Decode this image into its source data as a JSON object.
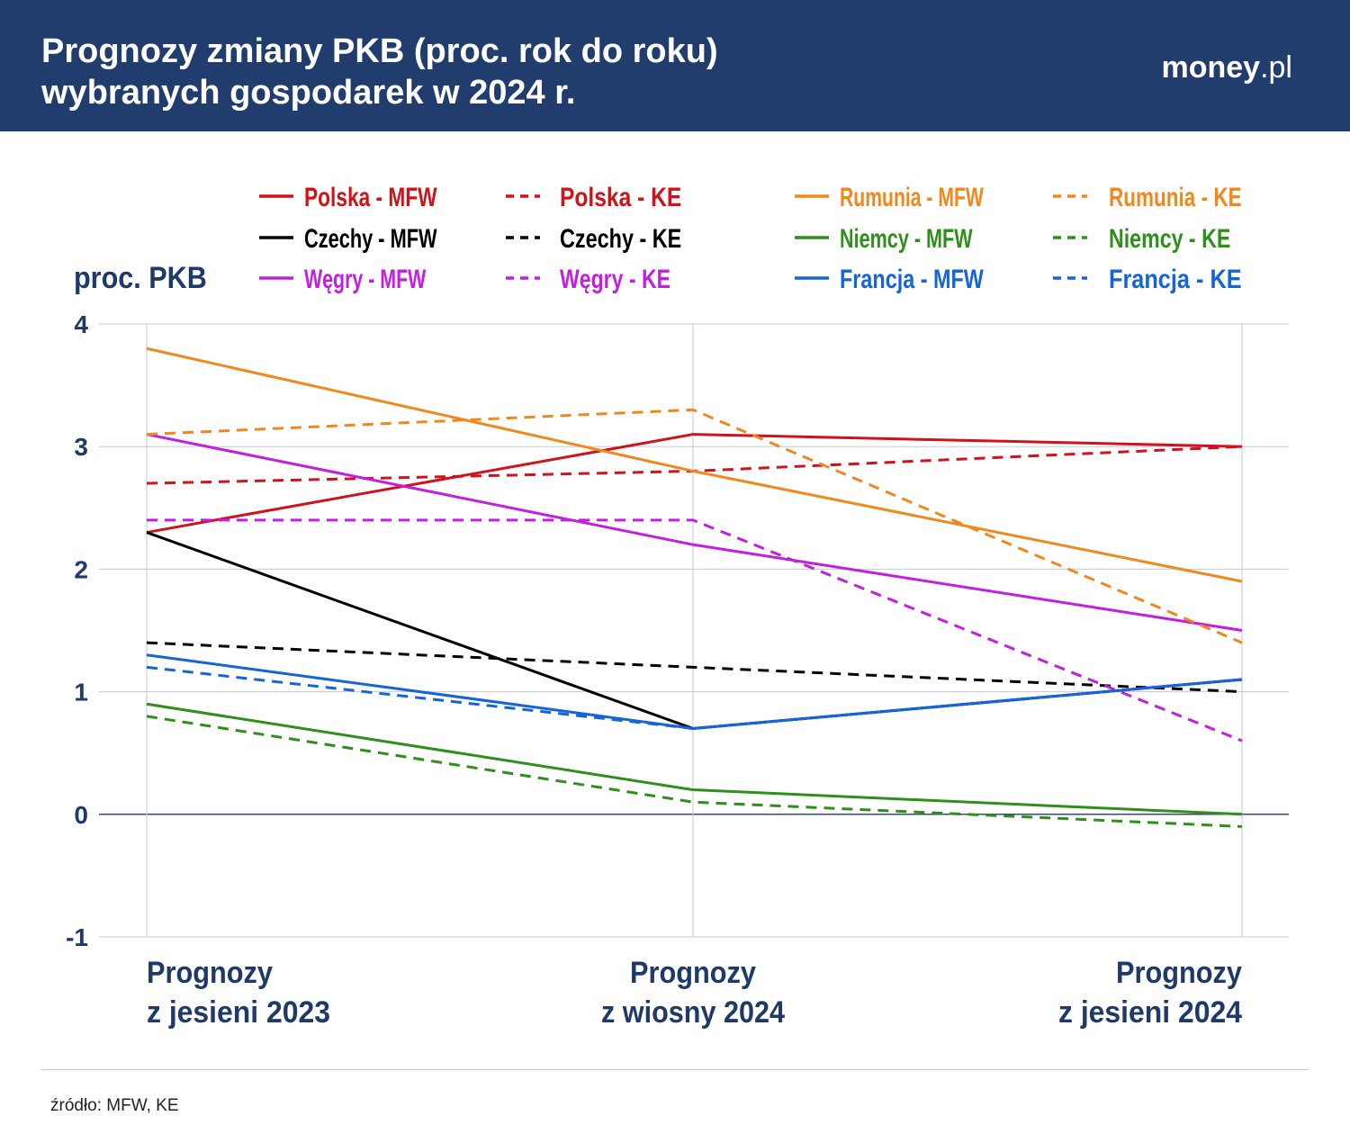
{
  "header": {
    "title_line1": "Prognozy zmiany PKB (proc. rok do roku)",
    "title_line2": "wybranych gospodarek w 2024 r.",
    "logo_main": "money",
    "logo_suffix": ".pl"
  },
  "source": "źródło: MFW, KE",
  "chart_data": {
    "type": "line",
    "ylabel": "proc. PKB",
    "ylim": [
      -1,
      4
    ],
    "yticks": [
      4,
      3,
      2,
      1,
      0,
      -1
    ],
    "grid": true,
    "legend_placement": "top",
    "categories": [
      [
        "Prognozy",
        "z jesieni 2023"
      ],
      [
        "Prognozy",
        "z wiosny 2024"
      ],
      [
        "Prognozy",
        "z jesieni 2024"
      ]
    ],
    "series": [
      {
        "name": "Polska - MFW",
        "color": "#d0121b",
        "dash": false,
        "values": [
          2.3,
          3.1,
          3.0
        ]
      },
      {
        "name": "Polska - KE",
        "color": "#d0121b",
        "dash": true,
        "values": [
          2.7,
          2.8,
          3.0
        ]
      },
      {
        "name": "Czechy - MFW",
        "color": "#000000",
        "dash": false,
        "values": [
          2.3,
          0.7,
          1.1
        ]
      },
      {
        "name": "Czechy - KE",
        "color": "#000000",
        "dash": true,
        "values": [
          1.4,
          1.2,
          1.0
        ]
      },
      {
        "name": "Węgry - MFW",
        "color": "#c21fe0",
        "dash": false,
        "values": [
          3.1,
          2.2,
          1.5
        ]
      },
      {
        "name": "Węgry - KE",
        "color": "#c21fe0",
        "dash": true,
        "values": [
          2.4,
          2.4,
          0.6
        ]
      },
      {
        "name": "Rumunia - MFW",
        "color": "#f0881e",
        "dash": false,
        "values": [
          3.8,
          2.8,
          1.9
        ]
      },
      {
        "name": "Rumunia - KE",
        "color": "#f0881e",
        "dash": true,
        "values": [
          3.1,
          3.3,
          1.4
        ]
      },
      {
        "name": "Niemcy - MFW",
        "color": "#2e8f1b",
        "dash": false,
        "values": [
          0.9,
          0.2,
          0.0
        ]
      },
      {
        "name": "Niemcy - KE",
        "color": "#2e8f1b",
        "dash": true,
        "values": [
          0.8,
          0.1,
          -0.1
        ]
      },
      {
        "name": "Francja - MFW",
        "color": "#1565d8",
        "dash": false,
        "values": [
          1.3,
          0.7,
          1.1
        ]
      },
      {
        "name": "Francja - KE",
        "color": "#1565d8",
        "dash": true,
        "values": [
          1.2,
          0.7,
          1.1
        ]
      }
    ]
  }
}
